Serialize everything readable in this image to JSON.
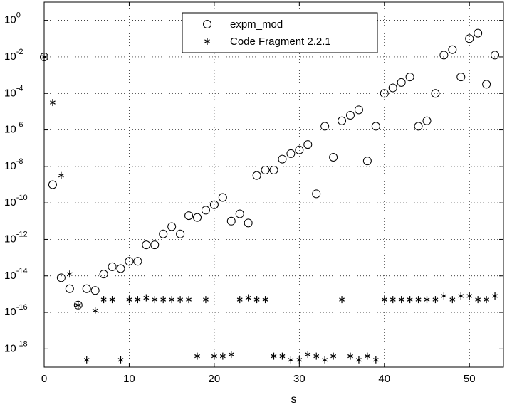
{
  "chart_data": {
    "type": "scatter",
    "title": "",
    "xlabel": "s",
    "ylabel": "",
    "xlim": [
      0,
      54
    ],
    "ylim_log10": [
      -19,
      1
    ],
    "yscale": "log",
    "grid": true,
    "legend_position": "top-center",
    "x_ticks": [
      0,
      10,
      20,
      30,
      40,
      50
    ],
    "y_ticks_exponents": [
      0,
      -2,
      -4,
      -6,
      -8,
      -10,
      -12,
      -14,
      -16,
      -18
    ],
    "series": [
      {
        "name": "expm_mod",
        "marker": "circle",
        "points": [
          [
            0,
            -2
          ],
          [
            1,
            -9
          ],
          [
            2,
            -14.1
          ],
          [
            3,
            -14.7
          ],
          [
            4,
            -15.6
          ],
          [
            5,
            -14.7
          ],
          [
            6,
            -14.8
          ],
          [
            7,
            -13.9
          ],
          [
            8,
            -13.5
          ],
          [
            9,
            -13.6
          ],
          [
            10,
            -13.2
          ],
          [
            11,
            -13.2
          ],
          [
            12,
            -12.3
          ],
          [
            13,
            -12.3
          ],
          [
            14,
            -11.7
          ],
          [
            15,
            -11.3
          ],
          [
            16,
            -11.7
          ],
          [
            17,
            -10.7
          ],
          [
            18,
            -10.8
          ],
          [
            19,
            -10.4
          ],
          [
            20,
            -10.1
          ],
          [
            21,
            -9.7
          ],
          [
            22,
            -11
          ],
          [
            23,
            -10.6
          ],
          [
            24,
            -11.1
          ],
          [
            25,
            -8.5
          ],
          [
            26,
            -8.2
          ],
          [
            27,
            -8.2
          ],
          [
            28,
            -7.6
          ],
          [
            29,
            -7.3
          ],
          [
            30,
            -7.1
          ],
          [
            31,
            -6.8
          ],
          [
            32,
            -9.5
          ],
          [
            33,
            -5.8
          ],
          [
            34,
            -7.5
          ],
          [
            35,
            -5.5
          ],
          [
            36,
            -5.2
          ],
          [
            37,
            -4.9
          ],
          [
            38,
            -7.7
          ],
          [
            39,
            -5.8
          ],
          [
            40,
            -4
          ],
          [
            41,
            -3.7
          ],
          [
            42,
            -3.4
          ],
          [
            43,
            -3.1
          ],
          [
            44,
            -5.8
          ],
          [
            45,
            -5.5
          ],
          [
            46,
            -4
          ],
          [
            47,
            -1.9
          ],
          [
            48,
            -1.6
          ],
          [
            49,
            -3.1
          ],
          [
            50,
            -1
          ],
          [
            51,
            -0.7
          ],
          [
            52,
            -3.5
          ],
          [
            53,
            -1.9
          ]
        ]
      },
      {
        "name": "Code Fragment 2.2.1",
        "marker": "asterisk",
        "points": [
          [
            0,
            -2
          ],
          [
            1,
            -4.5
          ],
          [
            2,
            -8.5
          ],
          [
            3,
            -13.9
          ],
          [
            4,
            -15.6
          ],
          [
            5,
            -18.6
          ],
          [
            6,
            -15.9
          ],
          [
            7,
            -15.3
          ],
          [
            8,
            -15.3
          ],
          [
            9,
            -18.6
          ],
          [
            10,
            -15.3
          ],
          [
            11,
            -15.3
          ],
          [
            12,
            -15.2
          ],
          [
            13,
            -15.3
          ],
          [
            14,
            -15.3
          ],
          [
            15,
            -15.3
          ],
          [
            16,
            -15.3
          ],
          [
            17,
            -15.3
          ],
          [
            18,
            -18.4
          ],
          [
            19,
            -15.3
          ],
          [
            20,
            -18.4
          ],
          [
            21,
            -18.4
          ],
          [
            22,
            -18.3
          ],
          [
            23,
            -15.3
          ],
          [
            24,
            -15.2
          ],
          [
            25,
            -15.3
          ],
          [
            26,
            -15.3
          ],
          [
            27,
            -18.4
          ],
          [
            28,
            -18.4
          ],
          [
            29,
            -18.6
          ],
          [
            30,
            -18.6
          ],
          [
            31,
            -18.3
          ],
          [
            32,
            -18.4
          ],
          [
            33,
            -18.6
          ],
          [
            34,
            -18.4
          ],
          [
            35,
            -15.3
          ],
          [
            36,
            -18.4
          ],
          [
            37,
            -18.6
          ],
          [
            38,
            -18.4
          ],
          [
            39,
            -18.6
          ],
          [
            40,
            -15.3
          ],
          [
            41,
            -15.3
          ],
          [
            42,
            -15.3
          ],
          [
            43,
            -15.3
          ],
          [
            44,
            -15.3
          ],
          [
            45,
            -15.3
          ],
          [
            46,
            -15.3
          ],
          [
            47,
            -15.1
          ],
          [
            48,
            -15.3
          ],
          [
            49,
            -15.1
          ],
          [
            50,
            -15.1
          ],
          [
            51,
            -15.3
          ],
          [
            52,
            -15.3
          ],
          [
            53,
            -15.1
          ]
        ]
      }
    ]
  }
}
